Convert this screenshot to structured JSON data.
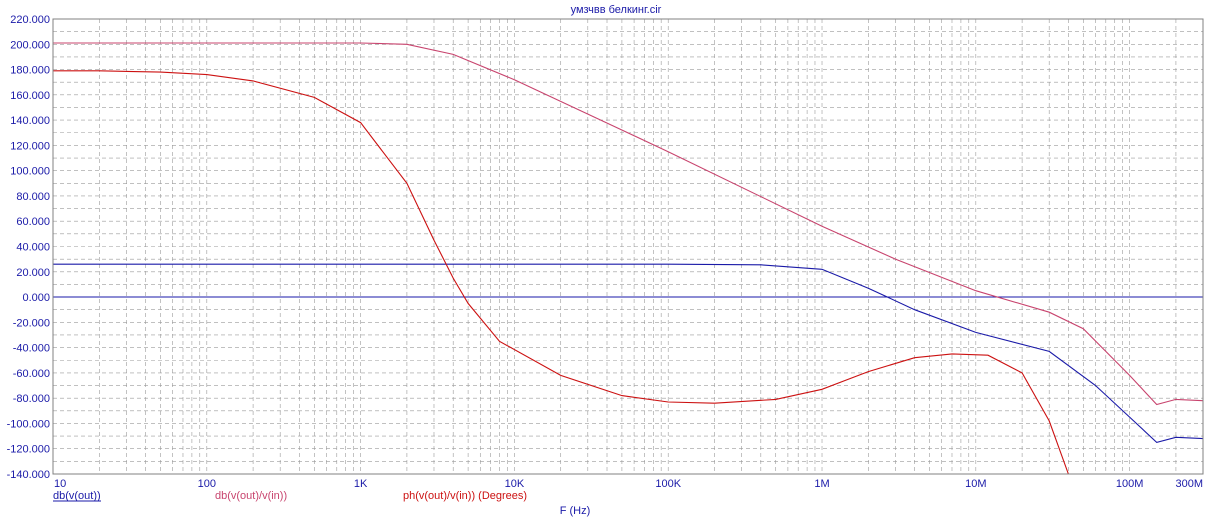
{
  "chart_data": {
    "type": "line",
    "title": "умзчвв белкинг.cir",
    "xlabel": "F (Hz)",
    "x_scale": "log",
    "xlim": [
      10,
      300000000
    ],
    "ylim": [
      -140,
      220
    ],
    "grid": true,
    "x_tick_labels": [
      {
        "value": 10,
        "label": "10"
      },
      {
        "value": 100,
        "label": "100"
      },
      {
        "value": 1000,
        "label": "1K"
      },
      {
        "value": 10000,
        "label": "10K"
      },
      {
        "value": 100000,
        "label": "100K"
      },
      {
        "value": 1000000,
        "label": "1M"
      },
      {
        "value": 10000000,
        "label": "10M"
      },
      {
        "value": 100000000,
        "label": "100M"
      },
      {
        "value": 300000000,
        "label": "300M"
      }
    ],
    "y_tick_labels": [
      "-140.000",
      "-120.000",
      "-100.000",
      "-80.000",
      "-60.000",
      "-40.000",
      "-20.000",
      "0.000",
      "20.000",
      "40.000",
      "60.000",
      "80.000",
      "100.000",
      "120.000",
      "140.000",
      "160.000",
      "180.000",
      "200.000",
      "220.000"
    ],
    "y_tick_values": [
      -140,
      -120,
      -100,
      -80,
      -60,
      -40,
      -20,
      0,
      20,
      40,
      60,
      80,
      100,
      120,
      140,
      160,
      180,
      200,
      220
    ],
    "baseline": {
      "y": 0,
      "color": "#1a1aa8"
    },
    "series": [
      {
        "name": "db(v(out))",
        "color": "#1a1aa8",
        "x": [
          10,
          1000,
          100000,
          400000,
          1000000,
          2000000,
          4000000,
          10000000,
          30000000,
          60000000,
          100000000,
          150000000,
          200000000,
          300000000
        ],
        "y": [
          26,
          26,
          26,
          25.5,
          22,
          7,
          -10,
          -28,
          -43,
          -70,
          -95,
          -115,
          -111,
          -112
        ]
      },
      {
        "name": "db(v(out)/v(in))",
        "color": "#c8446e",
        "x": [
          10,
          1000,
          2000,
          4000,
          10000,
          100000,
          1000000,
          3000000,
          10000000,
          30000000,
          50000000,
          100000000,
          150000000,
          200000000,
          300000000
        ],
        "y": [
          201,
          201,
          200,
          192,
          172,
          115,
          56,
          30,
          5,
          -12,
          -25,
          -62,
          -85,
          -81,
          -82
        ]
      },
      {
        "name": "ph(v(out)/v(in)) (Degrees)",
        "color": "#cc1111",
        "x": [
          10,
          20,
          50,
          100,
          200,
          500,
          1000,
          2000,
          3000,
          4000,
          5000,
          8000,
          20000,
          50000,
          100000,
          200000,
          500000,
          1000000,
          2000000,
          4000000,
          7000000,
          12000000,
          20000000,
          30000000,
          40000000
        ],
        "y": [
          179,
          179,
          178,
          176,
          171,
          158,
          138,
          90,
          45,
          15,
          -5,
          -35,
          -62,
          -78,
          -83,
          -84,
          -81,
          -73,
          -59,
          -48,
          -45,
          -46,
          -60,
          -98,
          -140
        ]
      }
    ]
  }
}
